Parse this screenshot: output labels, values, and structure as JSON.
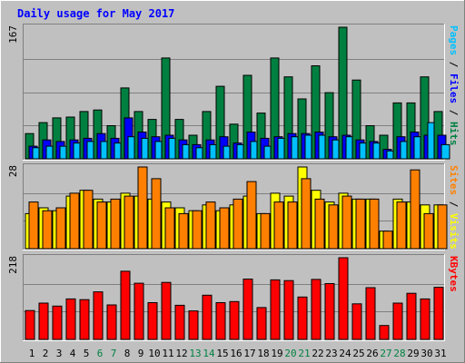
{
  "title": "Daily usage for May 2017",
  "colors": {
    "page_bg": "#c0c0c0",
    "panel_bg": "#c0c0c0",
    "grid": "#808080",
    "title": "#0000ff",
    "pages": "#00c0ff",
    "files": "#0000ff",
    "hits": "#008040",
    "sites": "#ff8000",
    "visits": "#ffff00",
    "kbytes": "#ff0000",
    "weekend": "#008040",
    "weekday": "#000000"
  },
  "chart_data": [
    {
      "type": "bar",
      "title": "Daily usage for May 2017",
      "panel": "pages-files-hits",
      "ymax_label": "167",
      "ylim": [
        0,
        167
      ],
      "right_labels": [
        {
          "text": "Pages",
          "color": "#00c0ff"
        },
        {
          "text": " / ",
          "color": "#000000"
        },
        {
          "text": "Files",
          "color": "#0000ff"
        },
        {
          "text": " / ",
          "color": "#000000"
        },
        {
          "text": "Hits",
          "color": "#008040"
        }
      ],
      "categories": [
        "1",
        "2",
        "3",
        "4",
        "5",
        "6",
        "7",
        "8",
        "9",
        "10",
        "11",
        "12",
        "13",
        "14",
        "15",
        "16",
        "17",
        "18",
        "19",
        "20",
        "21",
        "22",
        "23",
        "24",
        "25",
        "26",
        "27",
        "28",
        "29",
        "30",
        "31"
      ],
      "weekend_days": [
        "6",
        "7",
        "13",
        "14",
        "20",
        "21",
        "27",
        "28"
      ],
      "series": [
        {
          "name": "Hits",
          "color": "#008040",
          "values": [
            32,
            46,
            52,
            53,
            60,
            62,
            42,
            90,
            60,
            50,
            128,
            50,
            30,
            60,
            92,
            44,
            106,
            58,
            128,
            104,
            76,
            118,
            84,
            167,
            100,
            42,
            30,
            71,
            71,
            104,
            60
          ]
        },
        {
          "name": "Files",
          "color": "#0000ff",
          "values": [
            16,
            24,
            22,
            24,
            26,
            32,
            26,
            52,
            34,
            28,
            30,
            24,
            18,
            24,
            28,
            20,
            34,
            26,
            28,
            32,
            32,
            34,
            28,
            30,
            24,
            22,
            12,
            28,
            34,
            30,
            30
          ]
        },
        {
          "name": "Pages",
          "color": "#00c0ff",
          "values": [
            14,
            16,
            16,
            20,
            22,
            22,
            20,
            28,
            26,
            22,
            26,
            18,
            14,
            18,
            16,
            18,
            22,
            16,
            26,
            28,
            30,
            30,
            24,
            28,
            20,
            20,
            10,
            22,
            28,
            46,
            18
          ]
        }
      ]
    },
    {
      "type": "bar",
      "panel": "sites-visits",
      "ymax_label": "28",
      "ylim": [
        0,
        28
      ],
      "right_labels": [
        {
          "text": "Sites",
          "color": "#ff8000"
        },
        {
          "text": " / ",
          "color": "#000000"
        },
        {
          "text": "Visits",
          "color": "#ffff00"
        }
      ],
      "categories": [
        "1",
        "2",
        "3",
        "4",
        "5",
        "6",
        "7",
        "8",
        "9",
        "10",
        "11",
        "12",
        "13",
        "14",
        "15",
        "16",
        "17",
        "18",
        "19",
        "20",
        "21",
        "22",
        "23",
        "24",
        "25",
        "26",
        "27",
        "28",
        "29",
        "30",
        "31"
      ],
      "series": [
        {
          "name": "Visits",
          "color": "#ffff00",
          "values": [
            12,
            14,
            13,
            18,
            20,
            17,
            16,
            19,
            18,
            17,
            16,
            14,
            13,
            15,
            13,
            15,
            18,
            12,
            19,
            18,
            28,
            20,
            16,
            19,
            17,
            17,
            6,
            17,
            16,
            15,
            15
          ]
        },
        {
          "name": "Sites",
          "color": "#ff8000",
          "values": [
            16,
            13,
            14,
            19,
            20,
            16,
            17,
            18,
            28,
            24,
            14,
            12,
            13,
            16,
            14,
            17,
            23,
            12,
            16,
            16,
            24,
            17,
            15,
            18,
            17,
            17,
            6,
            16,
            27,
            12,
            15
          ]
        }
      ]
    },
    {
      "type": "bar",
      "panel": "kbytes",
      "ymax_label": "218",
      "ylim": [
        0,
        218
      ],
      "right_labels": [
        {
          "text": "KBytes",
          "color": "#ff0000"
        }
      ],
      "categories": [
        "1",
        "2",
        "3",
        "4",
        "5",
        "6",
        "7",
        "8",
        "9",
        "10",
        "11",
        "12",
        "13",
        "14",
        "15",
        "16",
        "17",
        "18",
        "19",
        "20",
        "21",
        "22",
        "23",
        "24",
        "25",
        "26",
        "27",
        "28",
        "29",
        "30",
        "31"
      ],
      "series": [
        {
          "name": "KBytes",
          "color": "#ff0000",
          "values": [
            77,
            97,
            89,
            108,
            106,
            127,
            92,
            182,
            150,
            98,
            152,
            91,
            76,
            118,
            98,
            101,
            161,
            85,
            159,
            157,
            113,
            160,
            149,
            218,
            95,
            138,
            37,
            97,
            123,
            108,
            139
          ]
        }
      ]
    }
  ]
}
